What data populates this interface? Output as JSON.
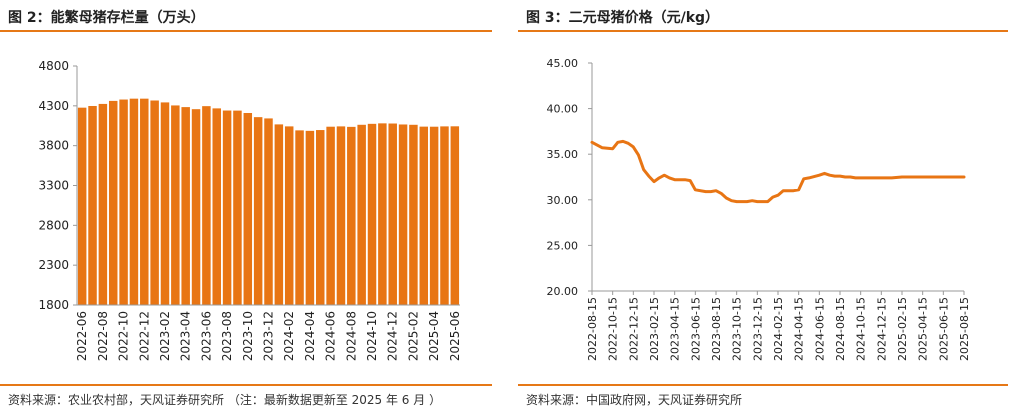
{
  "left": {
    "title": "图 2：能繁母猪存栏量（万头）",
    "source": "资料来源：农业农村部，天风证券研究所 （注：最新数据更新至 2025 年 6 月 ）"
  },
  "right": {
    "title": "图 3：二元母猪价格（元/kg）",
    "source": "资料来源：中国政府网，天风证券研究所"
  },
  "colors": {
    "accent": "#e67817",
    "bar": "#e87514",
    "line": "#e87514"
  },
  "chart_data": [
    {
      "type": "bar",
      "title": "能繁母猪存栏量（万头）",
      "xlabel": "",
      "ylabel": "",
      "ylim": [
        1800,
        4800
      ],
      "yticks": [
        "1800",
        "2300",
        "2800",
        "3300",
        "3800",
        "4300",
        "4800"
      ],
      "categories": [
        "2022-06",
        "2022-07",
        "2022-08",
        "2022-09",
        "2022-10",
        "2022-11",
        "2022-12",
        "2023-01",
        "2023-02",
        "2023-03",
        "2023-04",
        "2023-05",
        "2023-06",
        "2023-07",
        "2023-08",
        "2023-09",
        "2023-10",
        "2023-11",
        "2023-12",
        "2024-01",
        "2024-02",
        "2024-03",
        "2024-04",
        "2024-05",
        "2024-06",
        "2024-07",
        "2024-08",
        "2024-09",
        "2024-10",
        "2024-11",
        "2024-12",
        "2025-01",
        "2025-02",
        "2025-03",
        "2025-04",
        "2025-05",
        "2025-06"
      ],
      "xtick_labels": [
        "2022-06",
        "2022-08",
        "2022-10",
        "2022-12",
        "2023-02",
        "2023-04",
        "2023-06",
        "2023-08",
        "2023-10",
        "2023-12",
        "2024-02",
        "2024-04",
        "2024-06",
        "2024-08",
        "2024-10",
        "2024-12",
        "2025-02",
        "2025-04",
        "2025-06"
      ],
      "values": [
        4277,
        4298,
        4324,
        4362,
        4379,
        4390,
        4390,
        4367,
        4343,
        4305,
        4284,
        4258,
        4296,
        4268,
        4241,
        4240,
        4210,
        4158,
        4142,
        4067,
        4042,
        3992,
        3986,
        3996,
        4038,
        4042,
        4036,
        4062,
        4074,
        4080,
        4078,
        4066,
        4062,
        4039,
        4038,
        4042,
        4043
      ]
    },
    {
      "type": "line",
      "title": "二元母猪价格（元/kg）",
      "xlabel": "",
      "ylabel": "",
      "ylim": [
        20,
        45
      ],
      "yticks": [
        "20.00",
        "25.00",
        "30.00",
        "35.00",
        "40.00",
        "45.00"
      ],
      "xtick_labels": [
        "2022-08-15",
        "2022-10-15",
        "2022-12-15",
        "2023-02-15",
        "2023-04-15",
        "2023-06-15",
        "2023-08-15",
        "2023-10-15",
        "2023-12-15",
        "2024-02-15",
        "2024-04-15",
        "2024-06-15",
        "2024-08-15",
        "2024-10-15",
        "2024-12-15",
        "2025-02-15",
        "2025-04-15",
        "2025-06-15",
        "2025-08-15"
      ],
      "x_range": [
        0,
        36
      ],
      "series": [
        {
          "name": "二元母猪价格",
          "x": [
            0,
            1,
            2,
            2.5,
            3,
            3.5,
            4,
            4.5,
            5,
            5.5,
            6,
            6.5,
            7,
            7.5,
            8,
            8.5,
            9,
            9.5,
            10,
            11,
            11.5,
            12,
            12.5,
            13,
            13.5,
            14,
            14.5,
            15,
            15.5,
            16,
            16.5,
            17,
            17.5,
            18,
            18.5,
            19,
            19.5,
            20,
            20.5,
            21,
            22,
            22.5,
            23,
            23.5,
            24,
            24.5,
            25,
            25.5,
            26,
            26.5,
            27,
            28,
            29,
            30,
            31,
            32,
            33,
            34,
            35,
            36
          ],
          "values": [
            36.3,
            35.7,
            35.6,
            36.3,
            36.4,
            36.2,
            35.8,
            34.9,
            33.3,
            32.6,
            32.0,
            32.4,
            32.7,
            32.4,
            32.2,
            32.2,
            32.2,
            32.1,
            31.1,
            30.9,
            30.9,
            31.0,
            30.7,
            30.2,
            29.9,
            29.8,
            29.8,
            29.8,
            29.9,
            29.8,
            29.8,
            29.8,
            30.3,
            30.5,
            31.0,
            31.0,
            31.0,
            31.1,
            32.3,
            32.4,
            32.7,
            32.9,
            32.7,
            32.6,
            32.6,
            32.5,
            32.5,
            32.4,
            32.4,
            32.4,
            32.4,
            32.4,
            32.4,
            32.5,
            32.5,
            32.5,
            32.5,
            32.5,
            32.5,
            32.5
          ]
        }
      ]
    }
  ]
}
